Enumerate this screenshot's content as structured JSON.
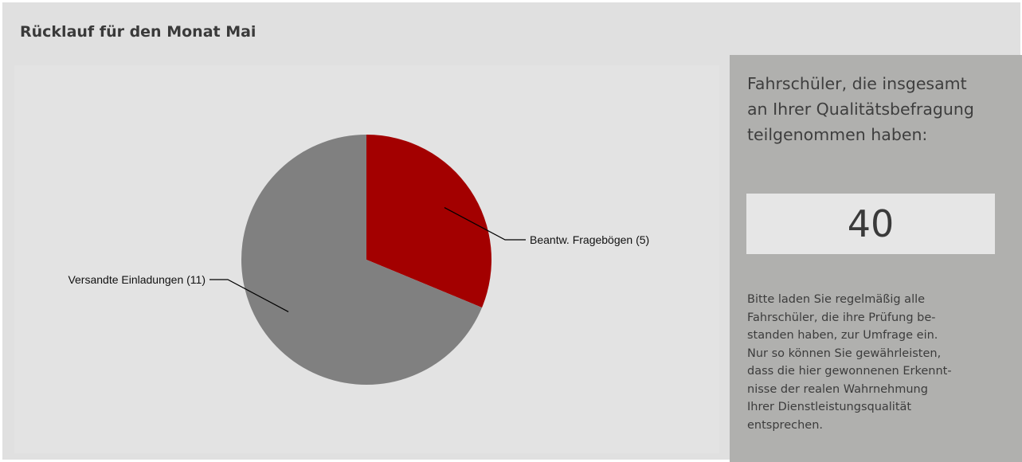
{
  "page": {
    "title": "Rücklauf für den Monat Mai"
  },
  "side_panel": {
    "heading_lines": [
      "Fahrschüler, die insgesamt",
      "an Ihrer Qualitätsbefragung",
      "teilgenommen haben:"
    ],
    "total_value": "40",
    "note_lines": [
      "Bitte laden Sie regelmäßig alle",
      "Fahrschüler, die ihre Prüfung be-",
      "standen haben, zur Umfrage ein.",
      "Nur so können Sie gewährleisten,",
      "dass die hier gewonnenen Erkennt-",
      "nisse der realen Wahrnehmung",
      "Ihrer Dienstleistungsqualität",
      "entsprechen."
    ]
  },
  "colors": {
    "answered": "#a30000",
    "invited": "#808080"
  },
  "chart_data": {
    "type": "pie",
    "title": "Rücklauf für den Monat Mai",
    "slices": [
      {
        "label": "Beantw. Fragebögen (5)",
        "value": 5,
        "color": "#a30000"
      },
      {
        "label": "Versandte Einladungen (11)",
        "value": 11,
        "color": "#808080"
      }
    ],
    "start_angle": "12 o'clock",
    "direction": "clockwise",
    "legend": "none (slice labels with leader lines)"
  }
}
